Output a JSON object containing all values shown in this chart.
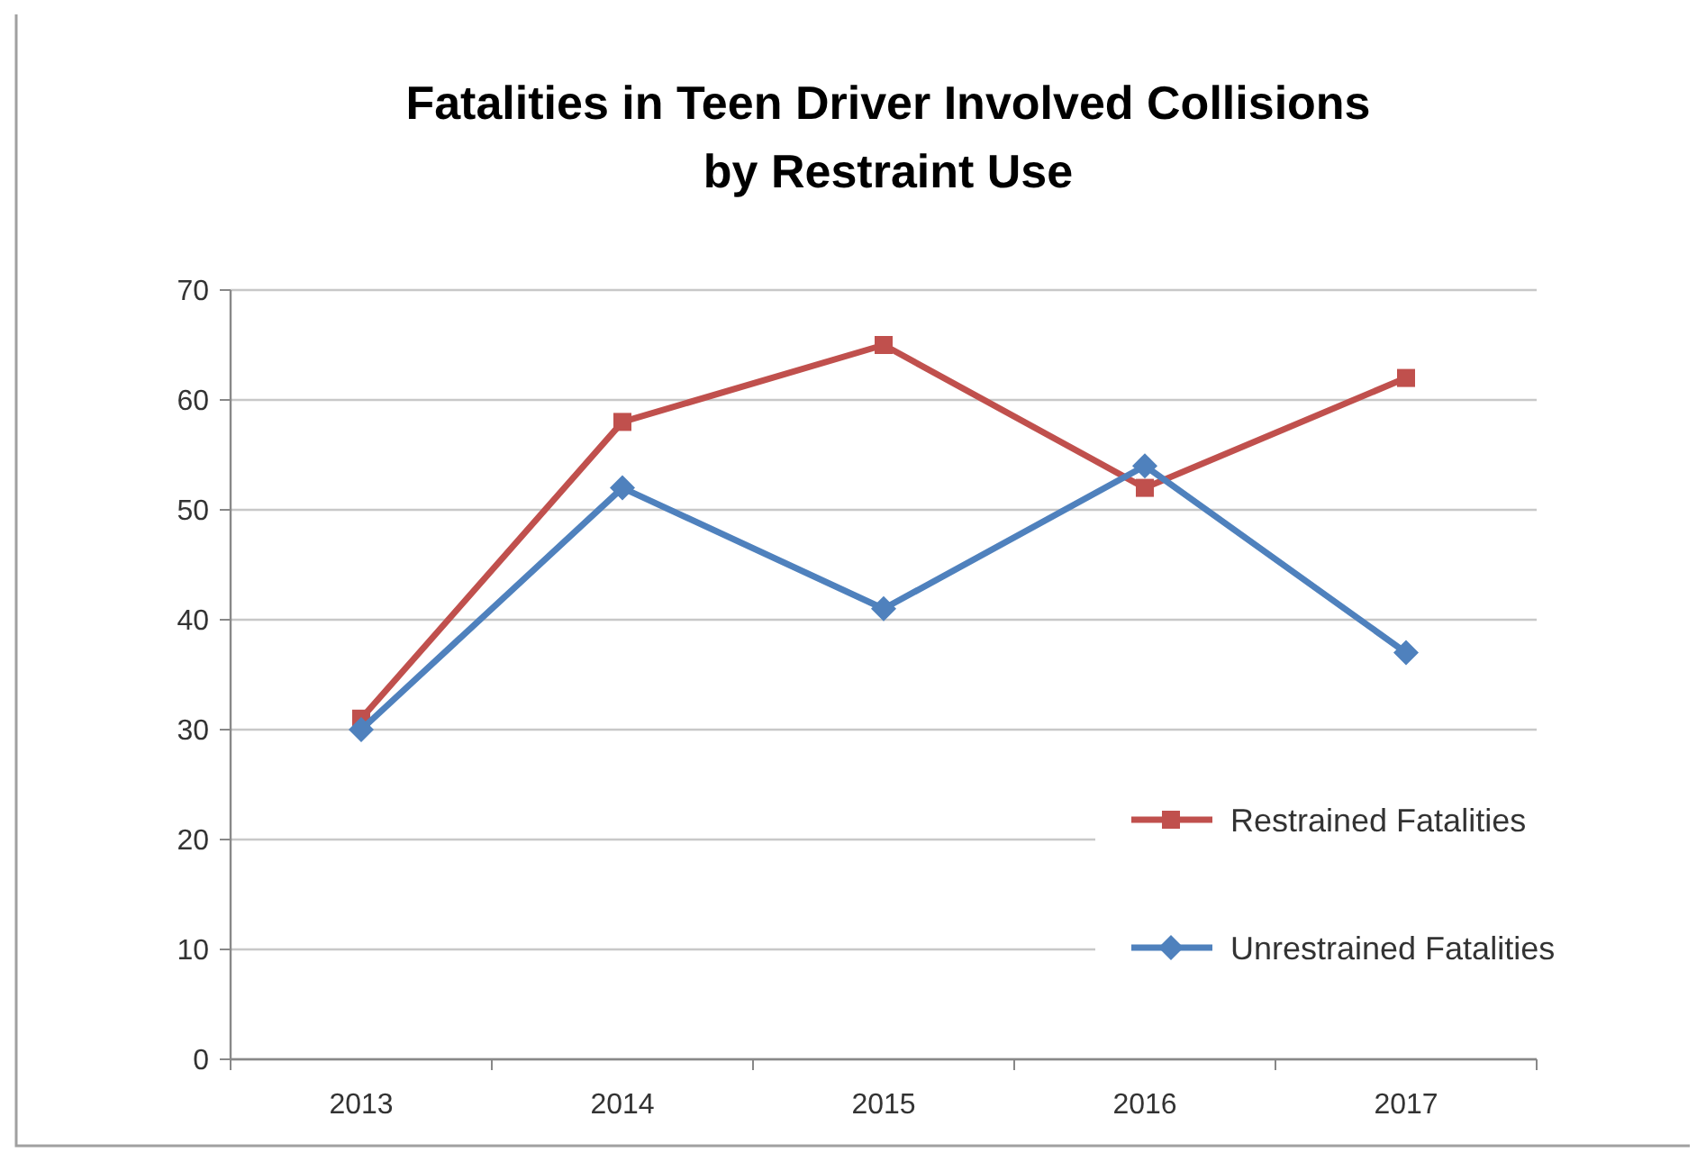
{
  "chart_data": {
    "type": "line",
    "title": "Fatalities in Teen Driver Involved Collisions\nby Restraint Use",
    "categories": [
      "2013",
      "2014",
      "2015",
      "2016",
      "2017"
    ],
    "series": [
      {
        "name": "Restrained Fatalities",
        "color": "#c0504d",
        "marker": "square",
        "values": [
          31,
          58,
          65,
          52,
          62
        ]
      },
      {
        "name": "Unrestrained Fatalities",
        "color": "#4f81bd",
        "marker": "diamond",
        "values": [
          30,
          52,
          41,
          54,
          37
        ]
      }
    ],
    "ylim": [
      0,
      70
    ],
    "yticks": [
      0,
      10,
      20,
      30,
      40,
      50,
      60,
      70
    ],
    "grid": "y",
    "legend": "right"
  }
}
